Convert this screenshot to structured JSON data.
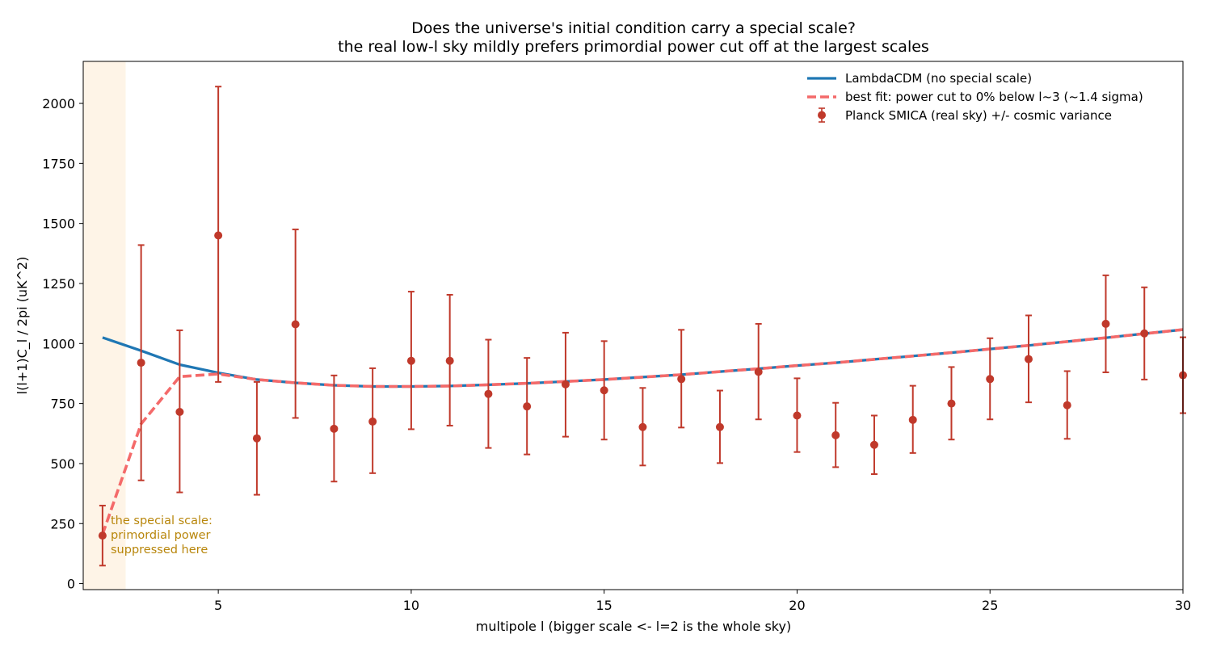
{
  "colors": {
    "lcdm": "#1f77b4",
    "fit": "#f46a6a",
    "data": "#c0392b",
    "annotation": "#b8860b",
    "shade": "#fdebd3"
  },
  "chart_data": {
    "type": "line",
    "title": "Does the universe's initial condition carry a special scale?",
    "subtitle": "the real low-l sky mildly prefers primordial power cut off at the largest scales",
    "xlabel": "multipole  l   (bigger scale <- l=2 is the whole sky)",
    "ylabel": "l(l+1)C_l / 2pi   (uK^2)",
    "xlim": [
      1.5,
      30
    ],
    "ylim": [
      -25,
      2175
    ],
    "xticks": [
      5,
      10,
      15,
      20,
      25,
      30
    ],
    "yticks": [
      0,
      250,
      500,
      750,
      1000,
      1250,
      1500,
      1750,
      2000
    ],
    "grid": false,
    "legend_position": "top-right",
    "shaded_region": {
      "x": [
        1.5,
        2.6
      ]
    },
    "annotation": {
      "lines": [
        "the special scale:",
        "primordial power",
        "suppressed here"
      ],
      "x": 2.2,
      "y": 250
    },
    "series": [
      {
        "name": "LambdaCDM (no special scale)",
        "style": "solid",
        "x": [
          2,
          3,
          4,
          5,
          6,
          7,
          8,
          9,
          10,
          11,
          12,
          13,
          14,
          15,
          16,
          17,
          18,
          19,
          20,
          21,
          22,
          23,
          24,
          25,
          26,
          27,
          28,
          29,
          30
        ],
        "values": [
          1025,
          970,
          912,
          878,
          850,
          836,
          826,
          821,
          821,
          823,
          828,
          834,
          842,
          850,
          860,
          870,
          883,
          895,
          908,
          920,
          934,
          948,
          962,
          977,
          992,
          1008,
          1024,
          1041,
          1058
        ]
      },
      {
        "name": "best fit: power cut to 0% below l~3  (~1.4 sigma)",
        "style": "dashed",
        "x": [
          2,
          3,
          4,
          5,
          6,
          7,
          8,
          9,
          10,
          11,
          12,
          13,
          14,
          15,
          16,
          17,
          18,
          19,
          20,
          21,
          22,
          23,
          24,
          25,
          26,
          27,
          28,
          29,
          30
        ],
        "values": [
          205,
          665,
          862,
          873,
          850,
          836,
          826,
          821,
          821,
          823,
          828,
          834,
          842,
          850,
          860,
          870,
          883,
          895,
          908,
          920,
          934,
          948,
          962,
          977,
          992,
          1008,
          1024,
          1041,
          1058
        ]
      },
      {
        "name": "Planck SMICA (real sky) +/- cosmic variance",
        "style": "errorbar",
        "x": [
          2,
          3,
          4,
          5,
          6,
          7,
          8,
          9,
          10,
          11,
          12,
          13,
          14,
          15,
          16,
          17,
          18,
          19,
          20,
          21,
          22,
          23,
          24,
          25,
          26,
          27,
          28,
          29,
          30
        ],
        "values": [
          200,
          920,
          715,
          1450,
          605,
          1080,
          645,
          675,
          928,
          928,
          790,
          738,
          830,
          805,
          652,
          852,
          652,
          882,
          700,
          618,
          578,
          682,
          750,
          852,
          935,
          743,
          1082,
          1042,
          868
        ],
        "err_low": [
          125,
          490,
          335,
          610,
          235,
          390,
          220,
          215,
          285,
          270,
          225,
          200,
          218,
          205,
          160,
          202,
          150,
          198,
          152,
          133,
          122,
          138,
          150,
          168,
          180,
          140,
          202,
          192,
          158
        ],
        "err_high": [
          125,
          490,
          340,
          620,
          235,
          395,
          222,
          222,
          288,
          275,
          226,
          202,
          215,
          205,
          163,
          205,
          152,
          200,
          155,
          135,
          122,
          142,
          152,
          170,
          182,
          142,
          202,
          192,
          158
        ]
      }
    ]
  }
}
